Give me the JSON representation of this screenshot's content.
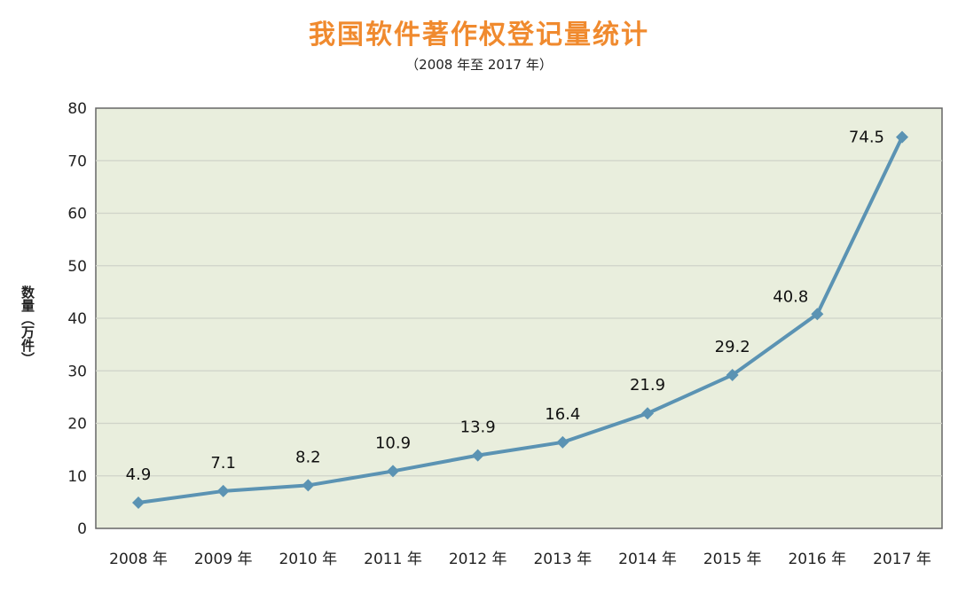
{
  "header": {
    "title": "我国软件著作权登记量统计",
    "subtitle": "（2008 年至 2017 年）"
  },
  "chart_data": {
    "type": "line",
    "title": "我国软件著作权登记量统计",
    "subtitle": "（2008 年至 2017 年）",
    "ylabel": "数量（万件）",
    "xlabel": "",
    "categories": [
      "2008 年",
      "2009 年",
      "2010 年",
      "2011 年",
      "2012 年",
      "2013 年",
      "2014 年",
      "2015 年",
      "2016 年",
      "2017 年"
    ],
    "values": [
      4.9,
      7.1,
      8.2,
      10.9,
      13.9,
      16.4,
      21.9,
      29.2,
      40.8,
      74.5
    ],
    "data_labels": [
      "4.9",
      "7.1",
      "8.2",
      "10.9",
      "13.9",
      "16.4",
      "21.9",
      "29.2",
      "40.8",
      "74.5"
    ],
    "ylim": [
      0,
      80
    ],
    "yticks": [
      0,
      10,
      20,
      30,
      40,
      50,
      60,
      70,
      80
    ],
    "grid": true,
    "legend": "none",
    "colors": {
      "line": "#5b93b3",
      "marker": "#5b93b3",
      "plot_background": "#e9eedd",
      "grid": "#cfd3c8",
      "title": "#f08a2e"
    }
  }
}
